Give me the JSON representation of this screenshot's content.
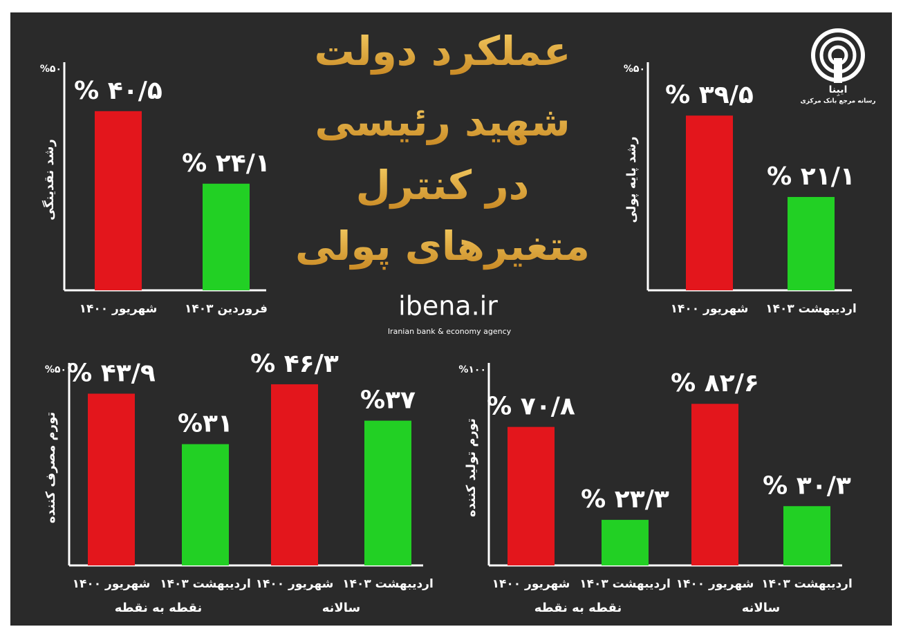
{
  "header": {
    "title_lines": [
      "عملکرد دولت",
      "شهید رئیسی",
      "در کنترل",
      "متغیرهای پولی"
    ],
    "site": "ibena.ir",
    "site_subtitle": "Iranian bank & economy agency",
    "logo_name": "ایبِنا",
    "logo_tagline": "رسانه مرجع بانک مرکزی"
  },
  "chart_data": [
    {
      "type": "bar",
      "y_label": "رشد نقدینگی",
      "categories": [
        "شهریور ۱۴۰۰",
        "فروردین ۱۴۰۳"
      ],
      "values": [
        40.5,
        24.1
      ],
      "value_labels": [
        "% ۴۰/۵",
        "% ۲۴/۱"
      ],
      "colors": [
        "#e3161c",
        "#22d024"
      ],
      "ylim": [
        0,
        50
      ],
      "yticks": [
        {
          "value": 50,
          "label": "%۵۰"
        }
      ],
      "grid": false
    },
    {
      "type": "bar",
      "y_label": "رشد پایه پولی",
      "categories": [
        "شهریور ۱۴۰۰",
        "اردیبهشت ۱۴۰۳"
      ],
      "values": [
        39.5,
        21.1
      ],
      "value_labels": [
        "% ۳۹/۵",
        "% ۲۱/۱"
      ],
      "colors": [
        "#e3161c",
        "#22d024"
      ],
      "ylim": [
        0,
        50
      ],
      "yticks": [
        {
          "value": 50,
          "label": "%۵۰"
        }
      ],
      "grid": false
    },
    {
      "type": "bar",
      "y_label": "تورم مصرف کننده",
      "categories": [
        "شهریور ۱۴۰۰",
        "اردیبهشت ۱۴۰۳",
        "شهریور ۱۴۰۰",
        "اردیبهشت ۱۴۰۳"
      ],
      "values": [
        43.9,
        31,
        46.3,
        37
      ],
      "value_labels": [
        "% ۴۳/۹",
        "%۳۱",
        "% ۴۶/۳",
        "%۳۷"
      ],
      "colors": [
        "#e3161c",
        "#22d024",
        "#e3161c",
        "#22d024"
      ],
      "group_labels": [
        "نقطه به نقطه",
        "سالانه"
      ],
      "ylim": [
        0,
        50
      ],
      "yticks": [
        {
          "value": 50,
          "label": "%۵۰"
        }
      ],
      "grid": false
    },
    {
      "type": "bar",
      "y_label": "تورم تولید کننده",
      "categories": [
        "شهریور ۱۴۰۰",
        "اردیبهشت ۱۴۰۳",
        "شهریور ۱۴۰۰",
        "اردیبهشت ۱۴۰۳"
      ],
      "values": [
        70.8,
        23.3,
        82.6,
        30.3
      ],
      "value_labels": [
        "% ۷۰/۸",
        "% ۲۳/۳",
        "% ۸۲/۶",
        "% ۳۰/۳"
      ],
      "colors": [
        "#e3161c",
        "#22d024",
        "#e3161c",
        "#22d024"
      ],
      "group_labels": [
        "نقطه به نقطه",
        "سالانه"
      ],
      "ylim": [
        0,
        100
      ],
      "yticks": [
        {
          "value": 100,
          "label": "%۱۰۰"
        }
      ],
      "grid": false
    }
  ]
}
